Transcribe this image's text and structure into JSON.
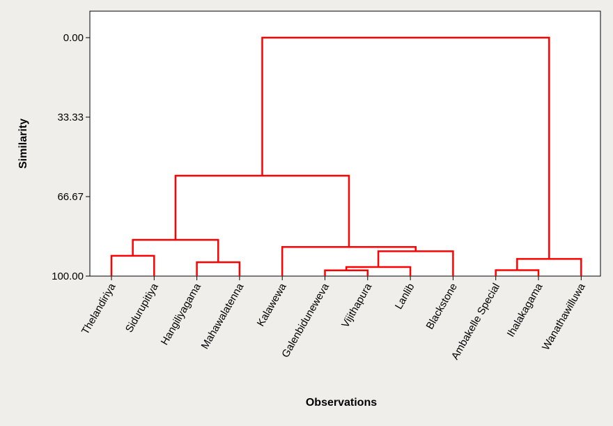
{
  "chart_data": {
    "type": "dendrogram",
    "title": "",
    "xlabel": "Observations",
    "ylabel": "Similarity",
    "ylim": [
      0,
      100
    ],
    "y_inverted": true,
    "yticks": [
      "0.00",
      "33.33",
      "66.67",
      "100.00"
    ],
    "ytick_values": [
      0,
      33.33,
      66.67,
      100
    ],
    "line_color": "#ff0000",
    "grid": false,
    "observations": [
      "Thelandiriya",
      "Sidurupitiya",
      "Hangiliyagama",
      "Mahawalatenna",
      "Kalawewa",
      "Galenbiduneweva",
      "Vijithapura",
      "Lanlib",
      "Blackstone",
      "Ambakelle Special",
      "Ihalakagama",
      "Wanathawilluwa"
    ],
    "merges": [
      {
        "left": 0,
        "right": 1,
        "similarity": 91.5
      },
      {
        "left": 2,
        "right": 3,
        "similarity": 94.2
      },
      {
        "left": 12,
        "right": 13,
        "similarity": 84.8
      },
      {
        "left": 5,
        "right": 6,
        "similarity": 97.6
      },
      {
        "left": 15,
        "right": 7,
        "similarity": 96.2
      },
      {
        "left": 16,
        "right": 8,
        "similarity": 89.6
      },
      {
        "left": 4,
        "right": 17,
        "similarity": 87.8
      },
      {
        "left": 14,
        "right": 18,
        "similarity": 57.9
      },
      {
        "left": 9,
        "right": 10,
        "similarity": 97.5
      },
      {
        "left": 20,
        "right": 11,
        "similarity": 92.8
      },
      {
        "left": 19,
        "right": 21,
        "similarity": 0.0
      }
    ]
  }
}
